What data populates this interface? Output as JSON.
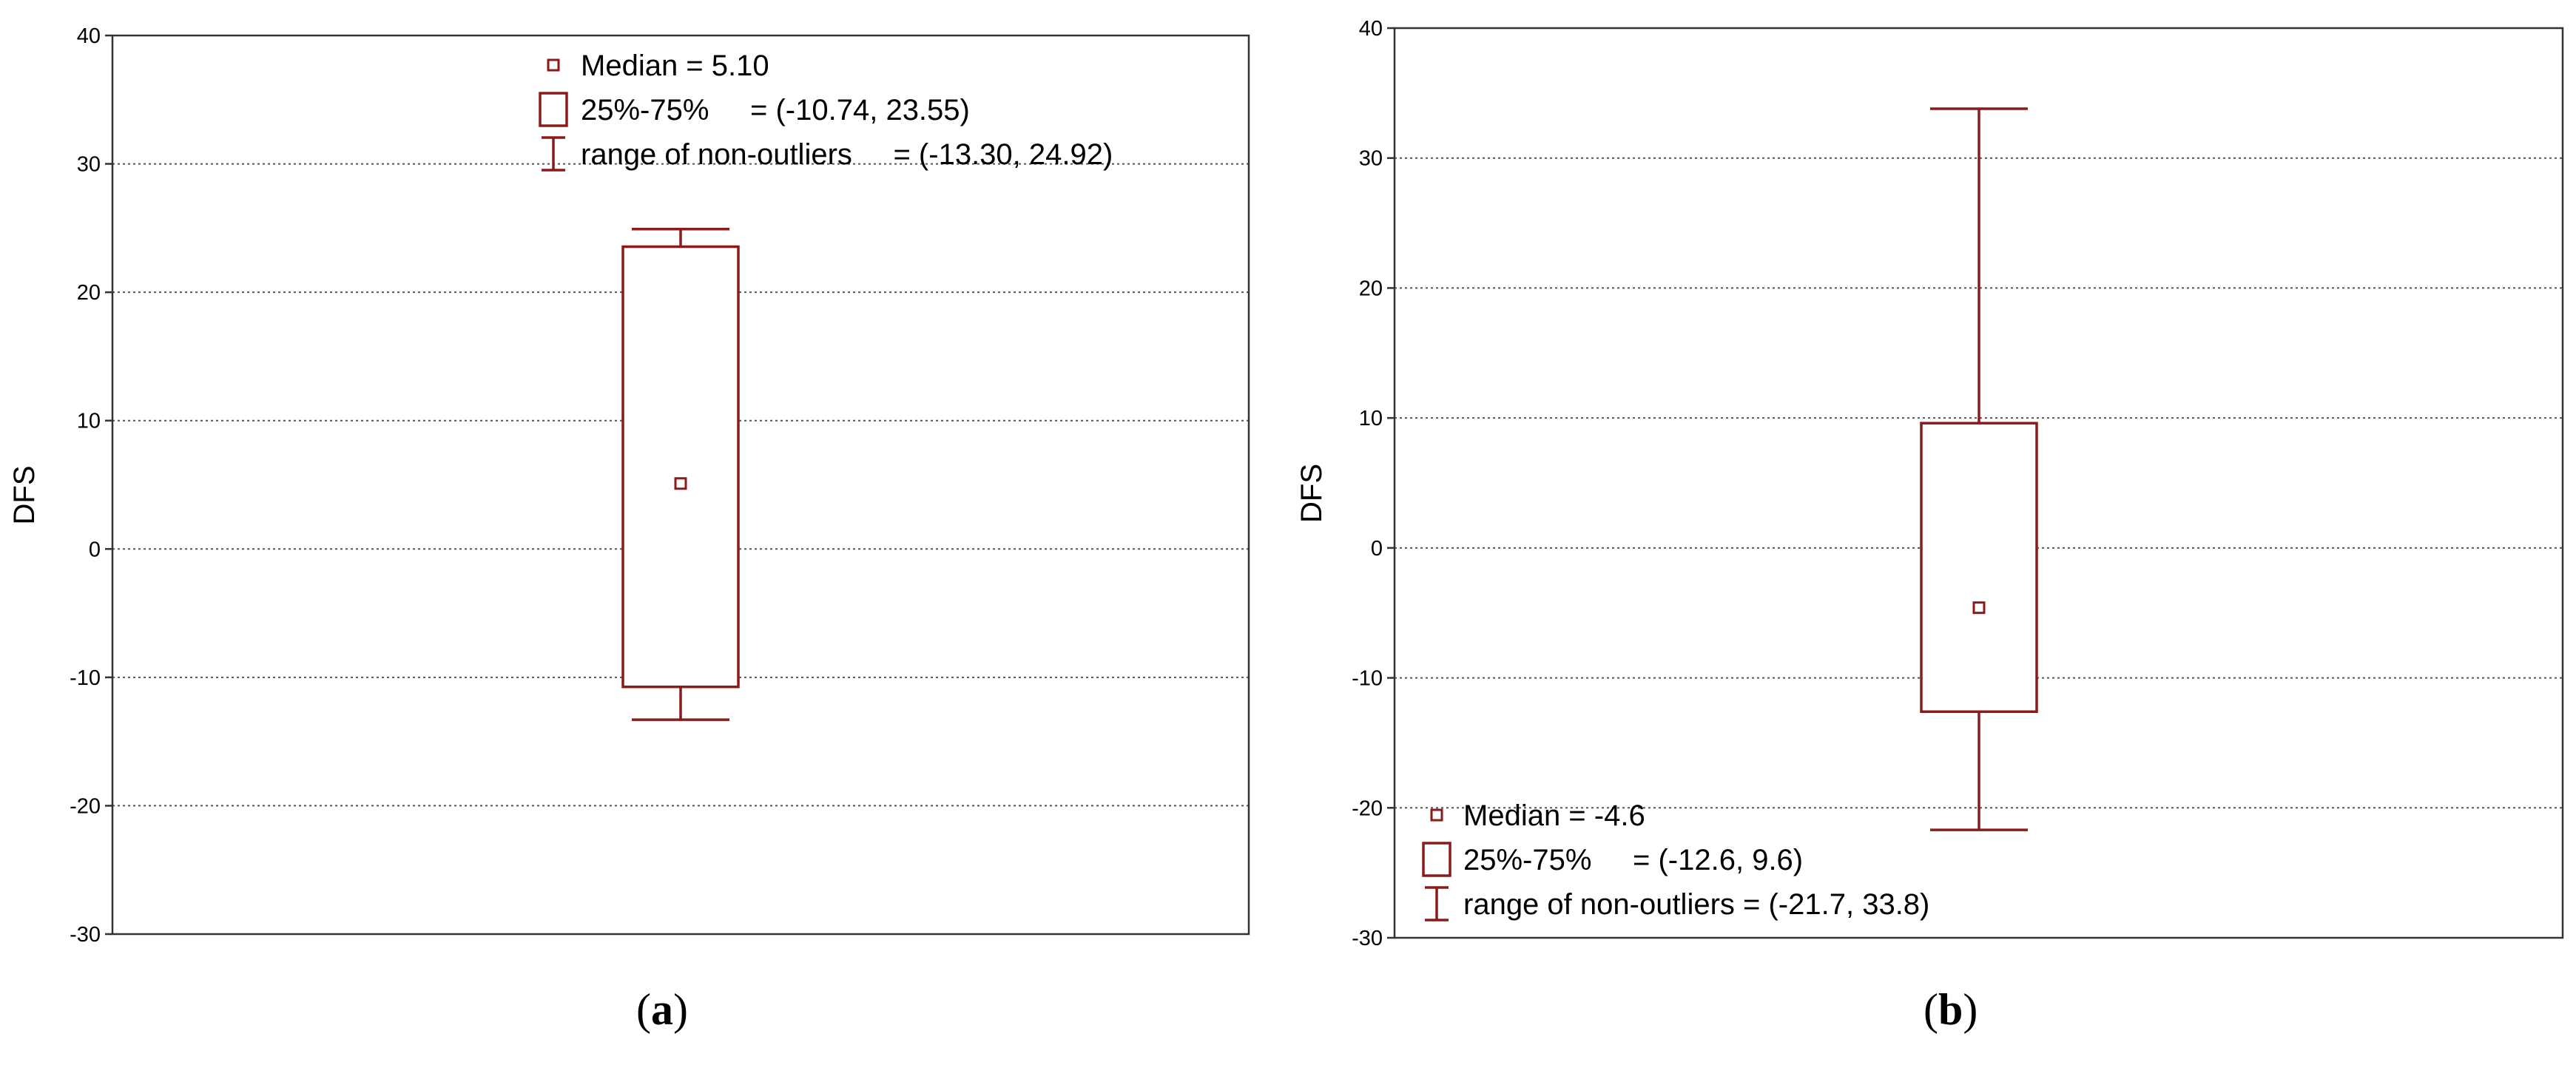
{
  "chart_data": [
    {
      "type": "box",
      "panel_label": "a",
      "ylabel": "DFS",
      "ylim": [
        -30,
        40
      ],
      "yticks": [
        -30,
        -20,
        -10,
        0,
        10,
        20,
        30,
        40
      ],
      "grid": "horizontal dotted",
      "color": "#8b1a1a",
      "median": 5.1,
      "q1": -10.74,
      "q3": 23.55,
      "whisker_low": -13.3,
      "whisker_high": 24.92,
      "legend_position": "top",
      "legend": [
        {
          "symbol": "median",
          "label": "Median = 5.10"
        },
        {
          "symbol": "box",
          "label": "25%-75%     = (-10.74, 23.55)"
        },
        {
          "symbol": "whisker",
          "label": "range of non-outliers     = (-13.30, 24.92)"
        }
      ]
    },
    {
      "type": "box",
      "panel_label": "b",
      "ylabel": "DFS",
      "ylim": [
        -30,
        40
      ],
      "yticks": [
        -30,
        -20,
        -10,
        0,
        10,
        20,
        30,
        40
      ],
      "grid": "horizontal dotted",
      "color": "#8b1a1a",
      "median": -4.6,
      "q1": -12.6,
      "q3": 9.6,
      "whisker_low": -21.7,
      "whisker_high": 33.8,
      "legend_position": "bottom-left",
      "legend": [
        {
          "symbol": "median",
          "label": "Median = -4.6"
        },
        {
          "symbol": "box",
          "label": "25%-75%     = (-12.6, 9.6)"
        },
        {
          "symbol": "whisker",
          "label": "range of non-outliers = (-21.7, 33.8)"
        }
      ]
    }
  ]
}
